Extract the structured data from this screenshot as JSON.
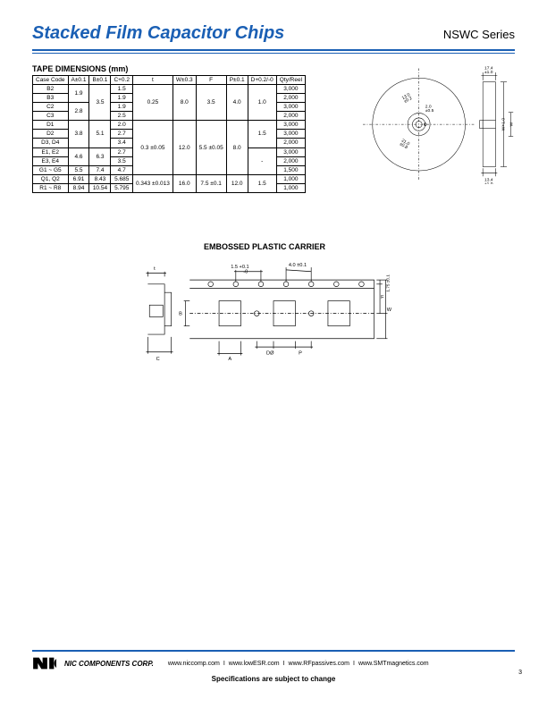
{
  "header": {
    "title": "Stacked Film Capacitor Chips",
    "series": "NSWC Series"
  },
  "tape_table": {
    "title": "TAPE DIMENSIONS (mm)",
    "headers": [
      "Case Code",
      "A±0.1",
      "B±0.1",
      "C+0.2",
      "t",
      "W±0.3",
      "F",
      "P±0.1",
      "D+0.2/-0",
      "Qty/Reel"
    ],
    "rows": [
      {
        "code": "B2",
        "A": "1.9",
        "B": "3.5",
        "C": "1.5",
        "t": "0.25",
        "W": "8.0",
        "F": "3.5",
        "P": "4.0",
        "D": "1.0",
        "Q": "3,000"
      },
      {
        "code": "B3",
        "A": "",
        "B": "",
        "C": "1.9",
        "t": "",
        "W": "",
        "F": "",
        "P": "",
        "D": "",
        "Q": "2,000"
      },
      {
        "code": "C2",
        "A": "2.8",
        "B": "",
        "C": "1.9",
        "t": "",
        "W": "",
        "F": "",
        "P": "",
        "D": "",
        "Q": "3,000"
      },
      {
        "code": "C3",
        "A": "",
        "B": "",
        "C": "2.5",
        "t": "",
        "W": "",
        "F": "",
        "P": "",
        "D": "",
        "Q": "2,000"
      },
      {
        "code": "D1",
        "A": "3.8",
        "B": "5.1",
        "C": "2.0",
        "t": "0.3 ±0.05",
        "W": "12.0",
        "F": "5.5 ±0.05",
        "P": "8.0",
        "D": "1.5",
        "Q": "3,000"
      },
      {
        "code": "D2",
        "A": "",
        "B": "",
        "C": "2.7",
        "t": "",
        "W": "",
        "F": "",
        "P": "",
        "D": "",
        "Q": "3,000"
      },
      {
        "code": "D3, D4",
        "A": "",
        "B": "",
        "C": "3.4",
        "t": "",
        "W": "",
        "F": "",
        "P": "",
        "D": "",
        "Q": "2,000"
      },
      {
        "code": "E1, E2",
        "A": "4.6",
        "B": "6.3",
        "C": "2.7",
        "t": "",
        "W": "",
        "F": "",
        "P": "",
        "D": "-",
        "Q": "3,000"
      },
      {
        "code": "E3, E4",
        "A": "",
        "B": "",
        "C": "3.5",
        "t": "",
        "W": "",
        "F": "",
        "P": "",
        "D": "",
        "Q": "2,000"
      },
      {
        "code": "G1 ~ G5",
        "A": "5.5",
        "B": "7.4",
        "C": "4.7",
        "t": "",
        "W": "",
        "F": "",
        "P": "",
        "D": "",
        "Q": "1,500"
      },
      {
        "code": "Q1, Q2",
        "A": "6.91",
        "B": "8.43",
        "C": "5.685",
        "t": "0.343 ±0.013",
        "W": "16.0",
        "F": "7.5 ±0.1",
        "P": "12.0",
        "D": "1.5",
        "Q": "1,000"
      },
      {
        "code": "R1 ~ R8",
        "A": "8.94",
        "B": "10.54",
        "C": "5.795",
        "t": "",
        "W": "",
        "F": "",
        "P": "",
        "D": "",
        "Q": "1,000"
      }
    ]
  },
  "reel": {
    "dim_top": "17.4\n±1.0",
    "dim_inner1": "2.0\n±0.5",
    "dim_inner2": "13.0\n±0.2",
    "dim_inner3": "21.0\n±0.8",
    "dim_right1": "W+1.0",
    "dim_right2": "W",
    "dim_bottom": "13.4\n±1.0"
  },
  "carrier": {
    "title": "EMBOSSED PLASTIC CARRIER",
    "dim_t": "t",
    "dim_hole": "1.5 +0.1\n      -0",
    "dim_pitch": "4.0 ±0.1",
    "dim_edge": "1.75 ±0.1",
    "dim_F": "F",
    "dim_W": "W",
    "dim_C": "C",
    "dim_A": "A",
    "dim_B": "B",
    "dim_DO": "DØ",
    "dim_P": "P"
  },
  "footer": {
    "corp": "NIC COMPONENTS CORP.",
    "urls": [
      "www.niccomp.com",
      "www.lowESR.com",
      "www.RFpassives.com",
      "www.SMTmagnetics.com"
    ],
    "disclaimer": "Specifications are subject to change",
    "page": "3"
  },
  "colors": {
    "accent": "#1a5fb4",
    "text": "#000000",
    "bg": "#ffffff",
    "line": "#000000"
  }
}
